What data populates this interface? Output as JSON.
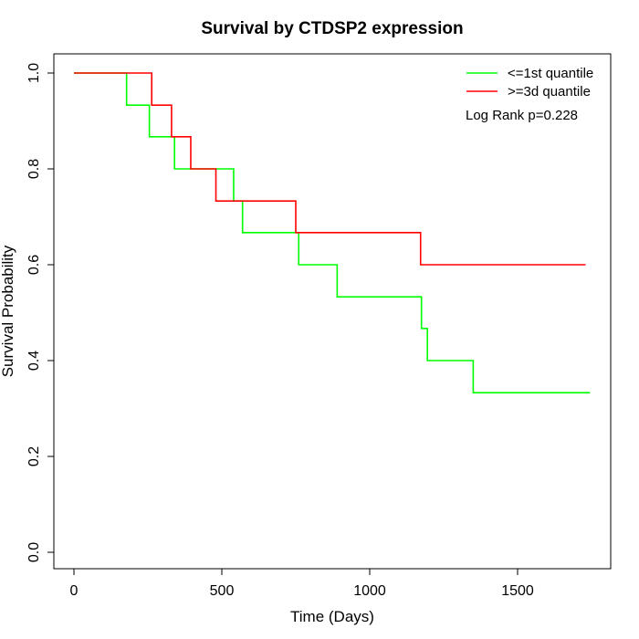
{
  "chart_data": {
    "type": "line",
    "step": true,
    "title": "Survival by CTDSP2 expression",
    "xlabel": "Time (Days)",
    "ylabel": "Survival Probability",
    "xlim": [
      0,
      1750
    ],
    "ylim": [
      0,
      1
    ],
    "xticks": [
      0,
      500,
      1000,
      1500
    ],
    "xtick_labels": [
      "0",
      "500",
      "1000",
      "1500"
    ],
    "yticks": [
      0,
      0.2,
      0.4,
      0.6,
      0.8,
      1
    ],
    "ytick_labels": [
      "0.0",
      "0.2",
      "0.4",
      "0.6",
      "0.8",
      "1.0"
    ],
    "grid": false,
    "legend_position": "top-right",
    "annotation": "Log Rank p=0.228",
    "series": [
      {
        "name": "<=1st quantile",
        "color": "#00ff00",
        "x": [
          0,
          178,
          255,
          340,
          540,
          570,
          760,
          890,
          1175,
          1195,
          1350,
          1745
        ],
        "y": [
          1.0,
          0.933,
          0.867,
          0.8,
          0.733,
          0.667,
          0.6,
          0.533,
          0.467,
          0.4,
          0.333,
          0.333
        ]
      },
      {
        "name": ">=3d quantile",
        "color": "#ff0000",
        "x": [
          0,
          263,
          330,
          395,
          480,
          750,
          1172,
          1730
        ],
        "y": [
          1.0,
          0.933,
          0.867,
          0.8,
          0.733,
          0.667,
          0.6,
          0.6
        ]
      }
    ]
  }
}
